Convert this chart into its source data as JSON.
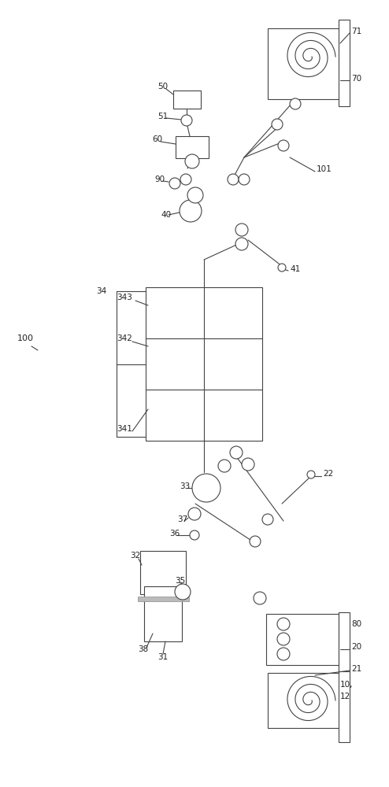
{
  "bg_color": "#ffffff",
  "line_color": "#444444",
  "label_color": "#222222",
  "fig_width": 4.94,
  "fig_height": 10.0,
  "dpi": 100
}
